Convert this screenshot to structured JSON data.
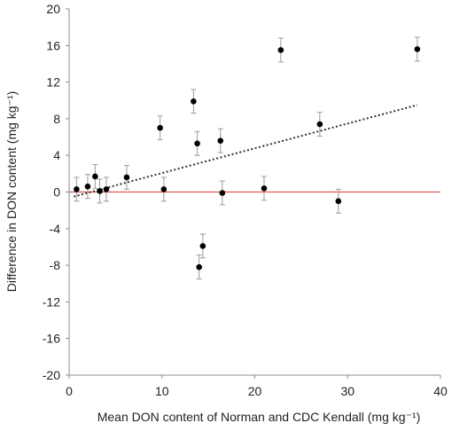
{
  "chart_data": {
    "type": "scatter",
    "title": "",
    "xlabel": "Mean DON content of Norman and CDC Kendall (mg kg⁻¹)",
    "ylabel": "Difference in DON content (mg kg⁻¹)",
    "xlim": [
      0,
      40
    ],
    "ylim": [
      -20,
      20
    ],
    "x_ticks": [
      "0",
      "10",
      "20",
      "30",
      "40"
    ],
    "y_ticks": [
      "20",
      "16",
      "12",
      "8",
      "4",
      "0",
      "-4",
      "-8",
      "-12",
      "-16",
      "-20"
    ],
    "grid": false,
    "zero_line": {
      "y": 0,
      "color": "#e05a5a"
    },
    "marker_color": "#000000",
    "errorbar_color": "#9a9a9a",
    "trendline": {
      "style": "dotted",
      "color": "#333333",
      "x": [
        0.5,
        37.5
      ],
      "y": [
        -0.5,
        9.5
      ]
    },
    "series": [
      {
        "points": [
          {
            "x": 0.8,
            "y": 0.3,
            "err": 1.3
          },
          {
            "x": 2.0,
            "y": 0.6,
            "err": 1.3
          },
          {
            "x": 2.8,
            "y": 1.7,
            "err": 1.3
          },
          {
            "x": 3.3,
            "y": 0.1,
            "err": 1.3
          },
          {
            "x": 4.0,
            "y": 0.3,
            "err": 1.3
          },
          {
            "x": 6.2,
            "y": 1.6,
            "err": 1.3
          },
          {
            "x": 9.8,
            "y": 7.0,
            "err": 1.3
          },
          {
            "x": 10.2,
            "y": 0.3,
            "err": 1.3
          },
          {
            "x": 13.4,
            "y": 9.9,
            "err": 1.3
          },
          {
            "x": 13.8,
            "y": 5.3,
            "err": 1.3
          },
          {
            "x": 14.0,
            "y": -8.2,
            "err": 1.3
          },
          {
            "x": 14.4,
            "y": -5.9,
            "err": 1.3
          },
          {
            "x": 16.3,
            "y": 5.6,
            "err": 1.3
          },
          {
            "x": 16.5,
            "y": -0.1,
            "err": 1.3
          },
          {
            "x": 21.0,
            "y": 0.4,
            "err": 1.3
          },
          {
            "x": 22.8,
            "y": 15.5,
            "err": 1.3
          },
          {
            "x": 27.0,
            "y": 7.4,
            "err": 1.3
          },
          {
            "x": 29.0,
            "y": -1.0,
            "err": 1.3
          },
          {
            "x": 37.5,
            "y": 15.6,
            "err": 1.3
          }
        ]
      }
    ]
  }
}
